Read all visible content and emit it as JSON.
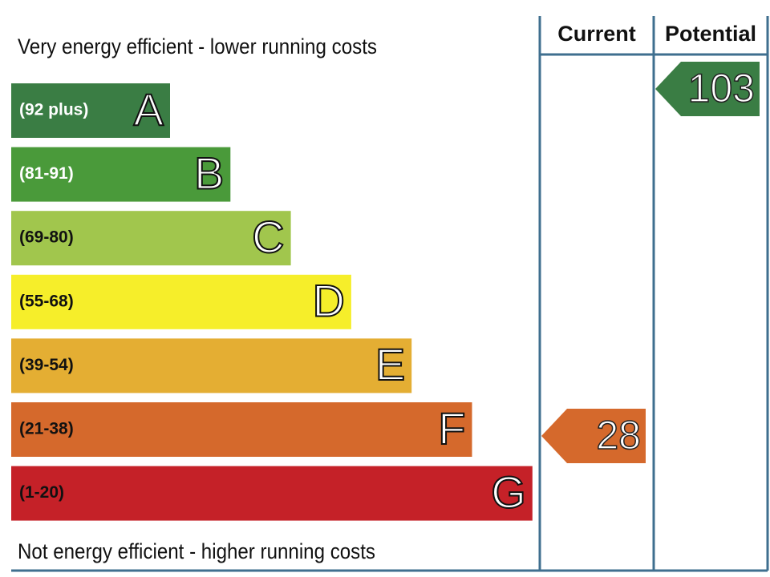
{
  "top_label": "Very energy efficient - lower running costs",
  "bottom_label": "Not energy efficient - higher running costs",
  "bands": [
    {
      "range": "(92 plus)",
      "letter": "A",
      "color": "#3a7d44"
    },
    {
      "range": "(81-91)",
      "letter": "B",
      "color": "#4a9a3a"
    },
    {
      "range": "(69-80)",
      "letter": "C",
      "color": "#a1c64d"
    },
    {
      "range": "(55-68)",
      "letter": "D",
      "color": "#f6ee2a"
    },
    {
      "range": "(39-54)",
      "letter": "E",
      "color": "#e4ae33"
    },
    {
      "range": "(21-38)",
      "letter": "F",
      "color": "#d5692c"
    },
    {
      "range": "(1-20)",
      "letter": "G",
      "color": "#c52128"
    }
  ],
  "columns": [
    {
      "title": "Current",
      "value": 28,
      "color": "#d5692c"
    },
    {
      "title": "Potential",
      "value": 103,
      "color": "#3a7d44"
    }
  ]
}
